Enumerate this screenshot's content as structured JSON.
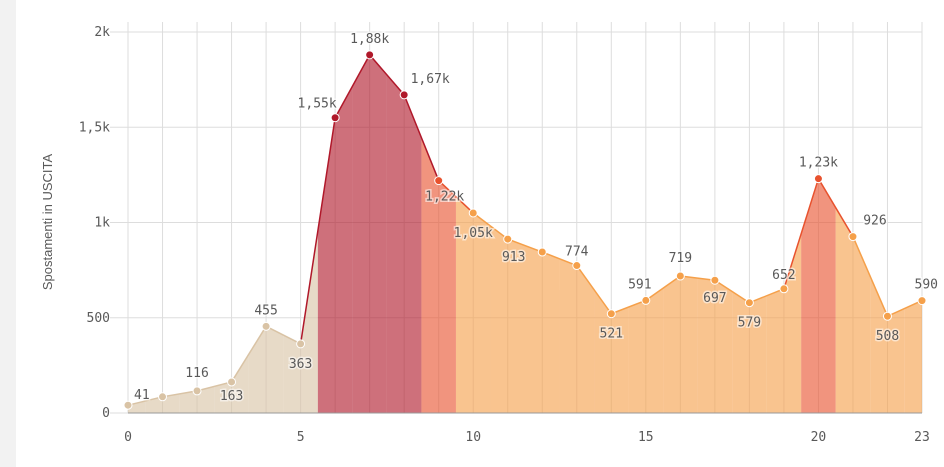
{
  "chart_data": {
    "type": "area",
    "ylabel": "Spostamenti in USCITA",
    "xlabel": "",
    "xlim": [
      0,
      23
    ],
    "ylim": [
      0,
      2000
    ],
    "x_ticks": [
      "0",
      "5",
      "10",
      "15",
      "20",
      "23"
    ],
    "y_ticks": [
      "0",
      "500",
      "1k",
      "1,5k",
      "2k"
    ],
    "grid": true,
    "x": [
      0,
      1,
      2,
      3,
      4,
      5,
      6,
      7,
      8,
      9,
      10,
      11,
      12,
      13,
      14,
      15,
      16,
      17,
      18,
      19,
      20,
      21,
      22,
      23
    ],
    "values": [
      41,
      85,
      116,
      163,
      455,
      363,
      1550,
      1880,
      1670,
      1220,
      1050,
      913,
      845,
      774,
      521,
      591,
      719,
      697,
      579,
      652,
      1230,
      926,
      508,
      590
    ],
    "data_labels": [
      {
        "x": 0,
        "text": "41"
      },
      {
        "x": 2,
        "text": "116"
      },
      {
        "x": 3,
        "text": "163"
      },
      {
        "x": 4,
        "text": "455"
      },
      {
        "x": 5,
        "text": "363"
      },
      {
        "x": 6,
        "text": "1,55k"
      },
      {
        "x": 7,
        "text": "1,88k"
      },
      {
        "x": 8,
        "text": "1,67k"
      },
      {
        "x": 9,
        "text": "1,22k"
      },
      {
        "x": 10,
        "text": "1,05k"
      },
      {
        "x": 11,
        "text": "913"
      },
      {
        "x": 13,
        "text": "774"
      },
      {
        "x": 14,
        "text": "521"
      },
      {
        "x": 15,
        "text": "591"
      },
      {
        "x": 16,
        "text": "719"
      },
      {
        "x": 17,
        "text": "697"
      },
      {
        "x": 18,
        "text": "579"
      },
      {
        "x": 19,
        "text": "652"
      },
      {
        "x": 20,
        "text": "1,23k"
      },
      {
        "x": 21,
        "text": "926"
      },
      {
        "x": 22,
        "text": "508"
      },
      {
        "x": 23,
        "text": "590"
      }
    ],
    "colors": {
      "low": "#d9c3a5",
      "medium": "#f5a04a",
      "high": "#e8522e",
      "peak": "#b0182a",
      "grid": "#dddddd",
      "axis": "#999999"
    }
  }
}
